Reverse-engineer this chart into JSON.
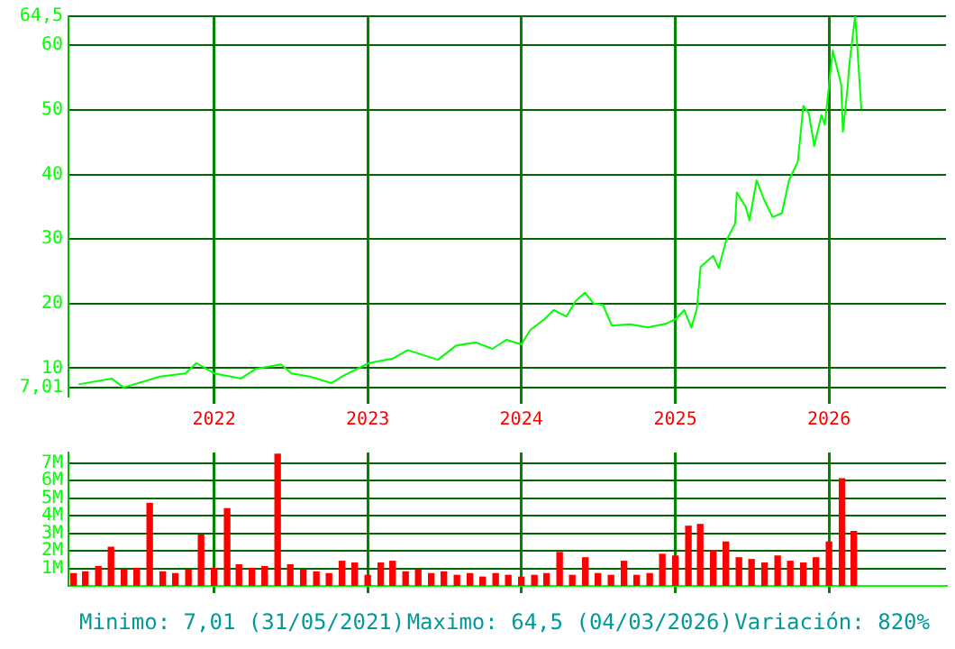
{
  "chart_data": [
    {
      "type": "line",
      "color": "#00ff00",
      "grid": true,
      "x": [
        "2021-02-13",
        "2021-05-03",
        "2021-05-31",
        "2021-08-25",
        "2021-10-25",
        "2021-11-20",
        "2022-01-01",
        "2022-03-06",
        "2022-04-10",
        "2022-06-09",
        "2022-07-04",
        "2022-08-16",
        "2022-10-07",
        "2022-11-06",
        "2023-01-04",
        "2023-03-02",
        "2023-04-06",
        "2023-06-17",
        "2023-07-30",
        "2023-09-15",
        "2023-10-24",
        "2023-11-27",
        "2024-01-01",
        "2024-01-22",
        "2024-02-25",
        "2024-03-18",
        "2024-04-17",
        "2024-05-09",
        "2024-05-31",
        "2024-06-21",
        "2024-07-13",
        "2024-08-03",
        "2024-09-15",
        "2024-10-28",
        "2024-12-10",
        "2025-01-02",
        "2025-01-22",
        "2025-02-08",
        "2025-02-21",
        "2025-03-02",
        "2025-04-01",
        "2025-04-14",
        "2025-05-01",
        "2025-05-23",
        "2025-05-27",
        "2025-06-17",
        "2025-06-26",
        "2025-07-13",
        "2025-07-30",
        "2025-08-20",
        "2025-09-11",
        "2025-09-28",
        "2025-10-19",
        "2025-11-01",
        "2025-11-14",
        "2025-11-27",
        "2025-12-14",
        "2025-12-22",
        "2026-01-02",
        "2026-01-10",
        "2026-01-30",
        "2026-02-03",
        "2026-02-14",
        "2026-02-18",
        "2026-03-04",
        "2026-03-08",
        "2026-03-15",
        "2026-03-19"
      ],
      "values": [
        7.5,
        8.4,
        7.01,
        8.7,
        9.2,
        10.8,
        9.2,
        8.4,
        9.9,
        10.6,
        9.2,
        8.7,
        7.7,
        8.9,
        10.8,
        11.5,
        12.8,
        11.3,
        13.5,
        14.0,
        13.0,
        14.4,
        13.7,
        15.9,
        17.6,
        19.0,
        18.0,
        20.4,
        21.7,
        20.0,
        19.8,
        16.6,
        16.8,
        16.3,
        16.9,
        17.6,
        19.0,
        16.3,
        19.2,
        25.7,
        27.4,
        25.5,
        29.6,
        32.4,
        37.2,
        35.0,
        32.9,
        39.1,
        36.2,
        33.4,
        34.0,
        39.1,
        42.0,
        50.6,
        49.5,
        44.4,
        49.2,
        47.7,
        54.4,
        59.2,
        53.9,
        46.6,
        53.4,
        56.8,
        64.5,
        61.1,
        53.9,
        50.1
      ],
      "xlim": [
        "2021-01-20",
        "2026-10-06"
      ],
      "xticks": [
        {
          "value": "2022-01-01",
          "label": "2022"
        },
        {
          "value": "2023-01-01",
          "label": "2023"
        },
        {
          "value": "2024-01-01",
          "label": "2024"
        },
        {
          "value": "2025-01-01",
          "label": "2025"
        },
        {
          "value": "2026-01-01",
          "label": "2026"
        }
      ],
      "ylim": [
        5.6,
        64.5
      ],
      "yticks": [
        {
          "value": 7.01,
          "label": "7,01"
        },
        10,
        20,
        30,
        40,
        50,
        60,
        {
          "value": 64.5,
          "label": "64,5"
        }
      ]
    },
    {
      "type": "bar",
      "color": "#ff0000",
      "grid": true,
      "tick_labels": "y",
      "x": [
        "2021-02",
        "2021-03",
        "2021-04",
        "2021-05",
        "2021-06",
        "2021-07",
        "2021-08",
        "2021-09",
        "2021-10",
        "2021-11",
        "2021-12",
        "2022-01",
        "2022-02",
        "2022-03",
        "2022-04",
        "2022-05",
        "2022-06",
        "2022-07",
        "2022-08",
        "2022-09",
        "2022-10",
        "2022-11",
        "2022-12",
        "2023-01",
        "2023-02",
        "2023-03",
        "2023-04",
        "2023-05",
        "2023-06",
        "2023-07",
        "2023-08",
        "2023-09",
        "2023-10",
        "2023-11",
        "2023-12",
        "2024-01",
        "2024-02",
        "2024-03",
        "2024-04",
        "2024-05",
        "2024-06",
        "2024-07",
        "2024-08",
        "2024-09",
        "2024-10",
        "2024-11",
        "2024-12",
        "2025-01",
        "2025-02",
        "2025-03",
        "2025-04",
        "2025-05",
        "2025-06",
        "2025-07",
        "2025-08",
        "2025-09",
        "2025-10",
        "2025-11",
        "2025-12",
        "2026-01",
        "2026-02",
        "2026-03"
      ],
      "values": [
        0.7,
        0.8,
        1.1,
        2.2,
        0.9,
        1.0,
        4.7,
        0.8,
        0.7,
        0.9,
        2.9,
        1.0,
        4.4,
        1.2,
        1.0,
        1.1,
        7.5,
        1.2,
        0.9,
        0.8,
        0.7,
        1.4,
        1.3,
        0.6,
        1.3,
        1.4,
        0.8,
        0.9,
        0.7,
        0.8,
        0.6,
        0.7,
        0.5,
        0.7,
        0.6,
        0.5,
        0.6,
        0.7,
        1.9,
        0.6,
        1.6,
        0.7,
        0.6,
        1.4,
        0.6,
        0.7,
        1.8,
        1.7,
        3.4,
        3.5,
        2.0,
        2.5,
        1.6,
        1.5,
        1.3,
        1.7,
        1.4,
        1.3,
        1.6,
        2.5,
        6.1,
        3.1
      ],
      "xlim": [
        "2021-01-20",
        "2026-10-06"
      ],
      "xticks": [
        {
          "value": "2022-01-01",
          "label": null
        },
        {
          "value": "2023-01-01",
          "label": null
        },
        {
          "value": "2024-01-01",
          "label": null
        },
        {
          "value": "2025-01-01",
          "label": null
        },
        {
          "value": "2026-01-01",
          "label": null
        }
      ],
      "ylim": [
        0,
        7.6
      ],
      "yticks": [
        {
          "value": 1,
          "label": "1M"
        },
        {
          "value": 2,
          "label": "2M"
        },
        {
          "value": 3,
          "label": "3M"
        },
        {
          "value": 4,
          "label": "4M"
        },
        {
          "value": 5,
          "label": "5M"
        },
        {
          "value": 6,
          "label": "6M"
        },
        {
          "value": 7,
          "label": "7M"
        }
      ],
      "annotations": [
        "Minimo: 7,01 (31/05/2021)",
        "Maximo: 64,5 (04/03/2026)",
        "Variación: 820%"
      ]
    }
  ]
}
